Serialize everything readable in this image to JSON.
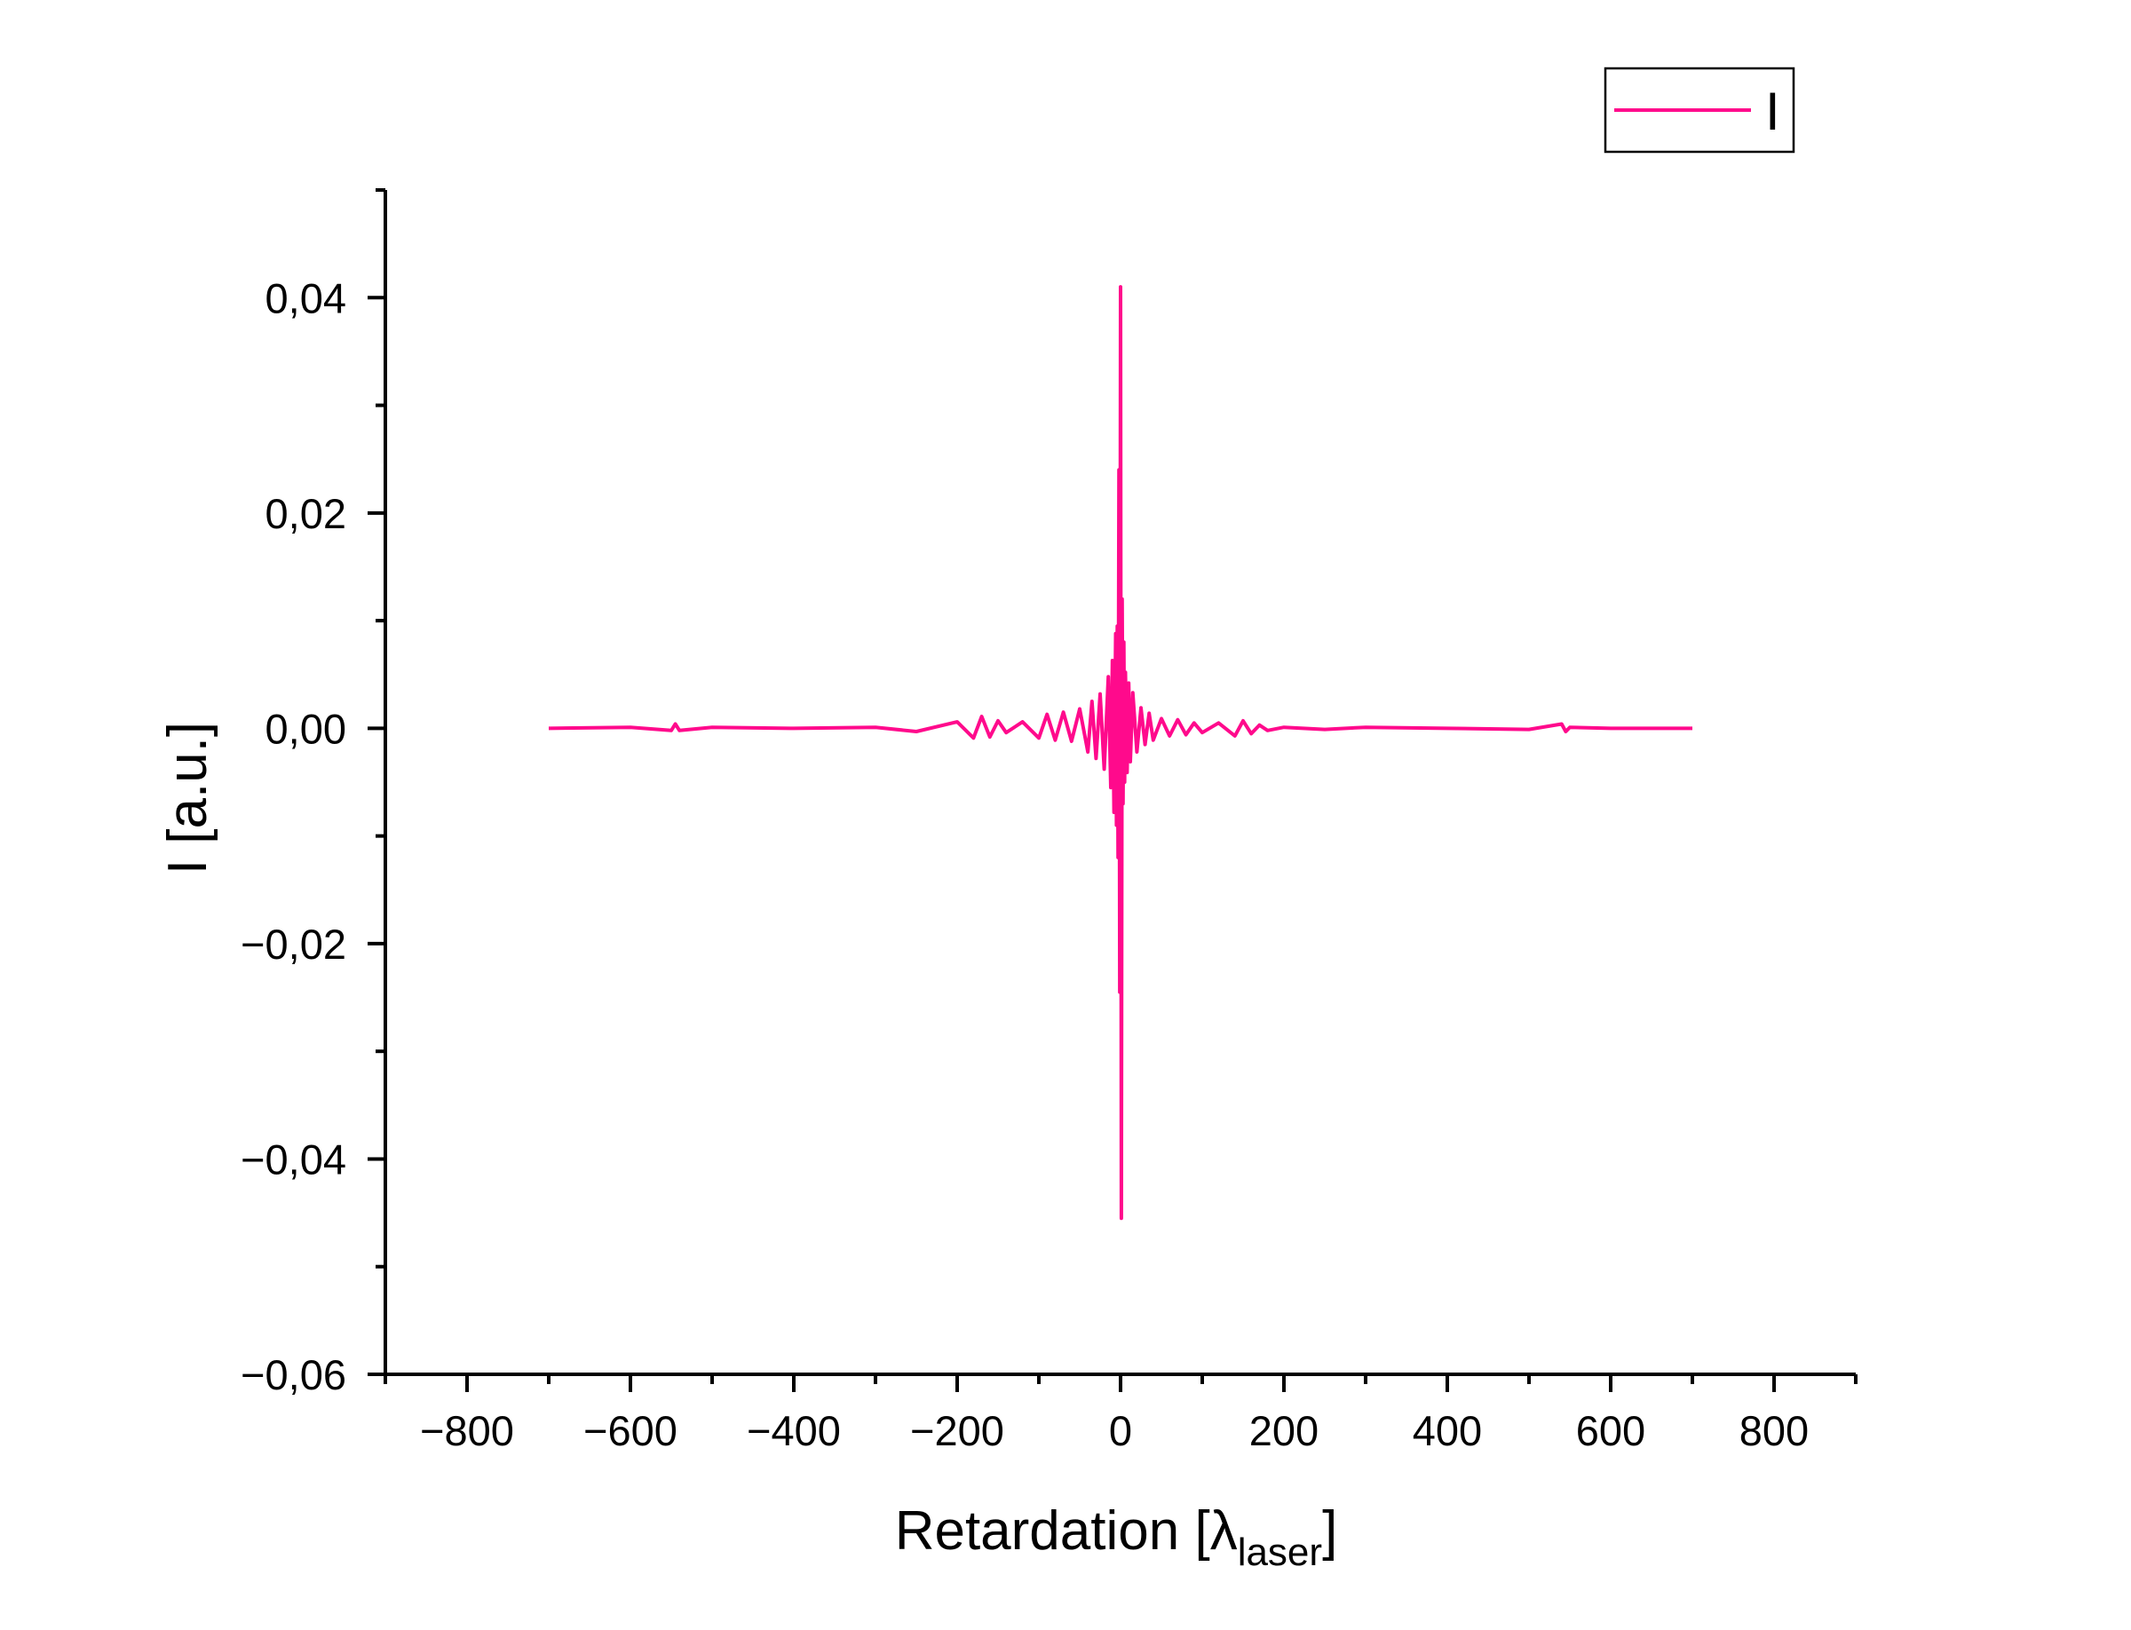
{
  "chart_data": {
    "type": "line",
    "xlabel": "Retardation [λlaser]",
    "xlabel_parts": {
      "main": "Retardation [",
      "symbol": "λ",
      "subscript": "laser",
      "close": "]"
    },
    "ylabel": "I [a.u.]",
    "xlim": [
      -900,
      900
    ],
    "ylim": [
      -0.06,
      0.05
    ],
    "x_ticks": [
      -800,
      -600,
      -400,
      -200,
      0,
      200,
      400,
      600,
      800
    ],
    "x_tick_labels": [
      "−800",
      "−600",
      "−400",
      "−200",
      "0",
      "200",
      "400",
      "600",
      "800"
    ],
    "x_minor_ticks": [
      -900,
      -700,
      -500,
      -300,
      -100,
      100,
      300,
      500,
      700,
      900
    ],
    "y_ticks": [
      -0.06,
      -0.04,
      -0.02,
      0.0,
      0.02,
      0.04
    ],
    "y_tick_labels": [
      "−0,06",
      "−0,04",
      "−0,02",
      "0,00",
      "0,02",
      "0,04"
    ],
    "y_minor_ticks": [
      -0.05,
      -0.03,
      -0.01,
      0.01,
      0.03,
      0.05
    ],
    "grid": false,
    "legend_position": "top-right",
    "series": [
      {
        "name": "I",
        "color": "#ff0a8c",
        "x": [
          -700,
          -600,
          -550,
          -545,
          -540,
          -500,
          -400,
          -300,
          -250,
          -200,
          -180,
          -170,
          -160,
          -150,
          -140,
          -120,
          -100,
          -90,
          -80,
          -70,
          -60,
          -50,
          -40,
          -35,
          -30,
          -25,
          -20,
          -15,
          -12,
          -10,
          -8,
          -6,
          -5,
          -4,
          -3,
          -2,
          -1,
          0,
          1,
          2,
          3,
          4,
          5,
          6,
          8,
          10,
          12,
          15,
          20,
          25,
          30,
          35,
          40,
          50,
          60,
          70,
          80,
          90,
          100,
          120,
          140,
          150,
          160,
          170,
          180,
          200,
          250,
          300,
          400,
          500,
          540,
          545,
          550,
          600,
          700
        ],
        "y": [
          0.0,
          0.0001,
          -0.0002,
          0.0004,
          -0.0002,
          0.0001,
          0.0,
          0.0001,
          -0.0003,
          0.0006,
          -0.0009,
          0.0011,
          -0.0008,
          0.0007,
          -0.0004,
          0.0006,
          -0.0009,
          0.0013,
          -0.0011,
          0.0015,
          -0.0012,
          0.0018,
          -0.0022,
          0.0025,
          -0.0028,
          0.0032,
          -0.0038,
          0.0048,
          -0.0055,
          0.0063,
          -0.0078,
          0.0088,
          -0.009,
          0.0095,
          -0.012,
          0.024,
          -0.0245,
          0.041,
          -0.0455,
          0.012,
          -0.007,
          0.008,
          -0.005,
          0.0052,
          -0.0041,
          0.0042,
          -0.0031,
          0.0033,
          -0.0022,
          0.0019,
          -0.0015,
          0.0014,
          -0.0011,
          0.0009,
          -0.0007,
          0.0008,
          -0.0006,
          0.0005,
          -0.0004,
          0.0005,
          -0.0007,
          0.0007,
          -0.0005,
          0.0003,
          -0.0002,
          0.0001,
          -0.0001,
          0.0001,
          0.0,
          -0.0001,
          0.0004,
          -0.0003,
          0.0001,
          0.0,
          0.0
        ]
      }
    ]
  }
}
